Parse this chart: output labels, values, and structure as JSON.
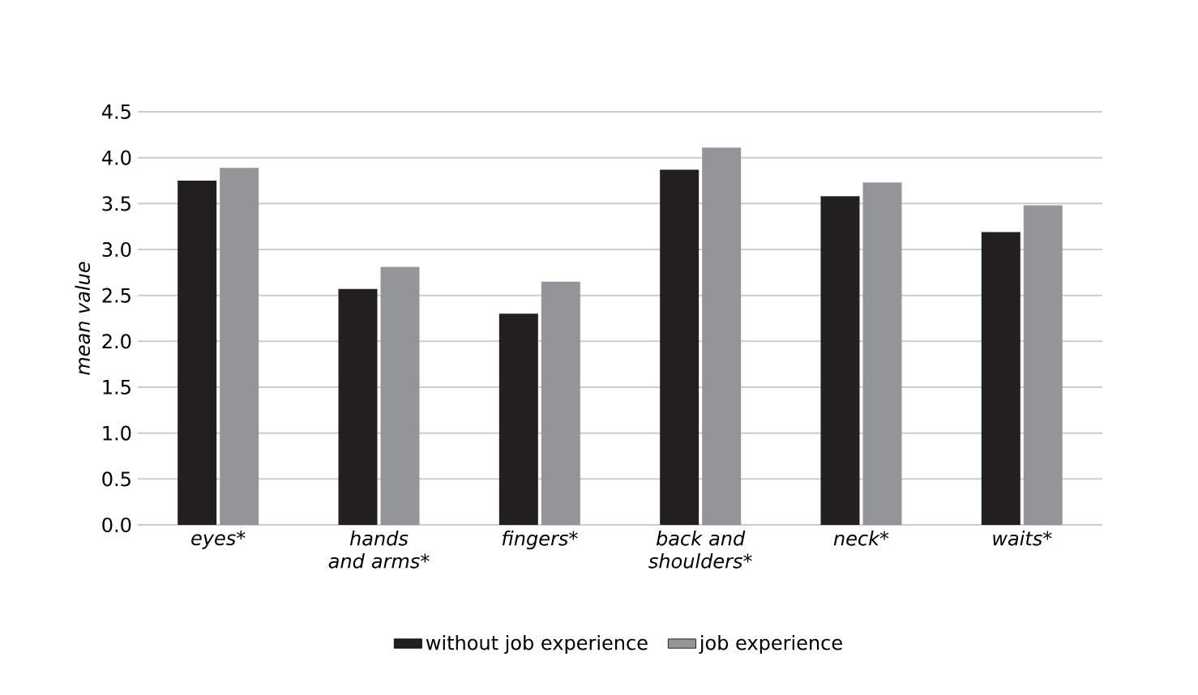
{
  "chart_data": {
    "type": "bar",
    "ylabel": "mean value",
    "categories": [
      "eyes*",
      "hands and arms*",
      "fingers*",
      "back and shoulders*",
      "neck*",
      "waits*"
    ],
    "series": [
      {
        "name": "without job experience",
        "color": "#231f20",
        "values": [
          3.75,
          2.57,
          2.3,
          3.87,
          3.58,
          3.19
        ]
      },
      {
        "name": "job experience",
        "color": "#939598",
        "values": [
          3.89,
          2.81,
          2.65,
          4.11,
          3.73,
          3.48
        ]
      }
    ],
    "ylim": [
      0,
      4.5
    ],
    "yticks": [
      {
        "value": 0,
        "label": "0.0"
      },
      {
        "value": 0.5,
        "label": "0.5"
      },
      {
        "value": 1,
        "label": "1.0"
      },
      {
        "value": 1.5,
        "label": "1.5"
      },
      {
        "value": 2,
        "label": "2.0"
      },
      {
        "value": 2.5,
        "label": "2.5"
      },
      {
        "value": 3,
        "label": "3.0"
      },
      {
        "value": 3.5,
        "label": "3.5"
      },
      {
        "value": 4,
        "label": "4.0"
      },
      {
        "value": 4.5,
        "label": "4.5"
      }
    ],
    "grid": "y",
    "legend": "bottom"
  }
}
